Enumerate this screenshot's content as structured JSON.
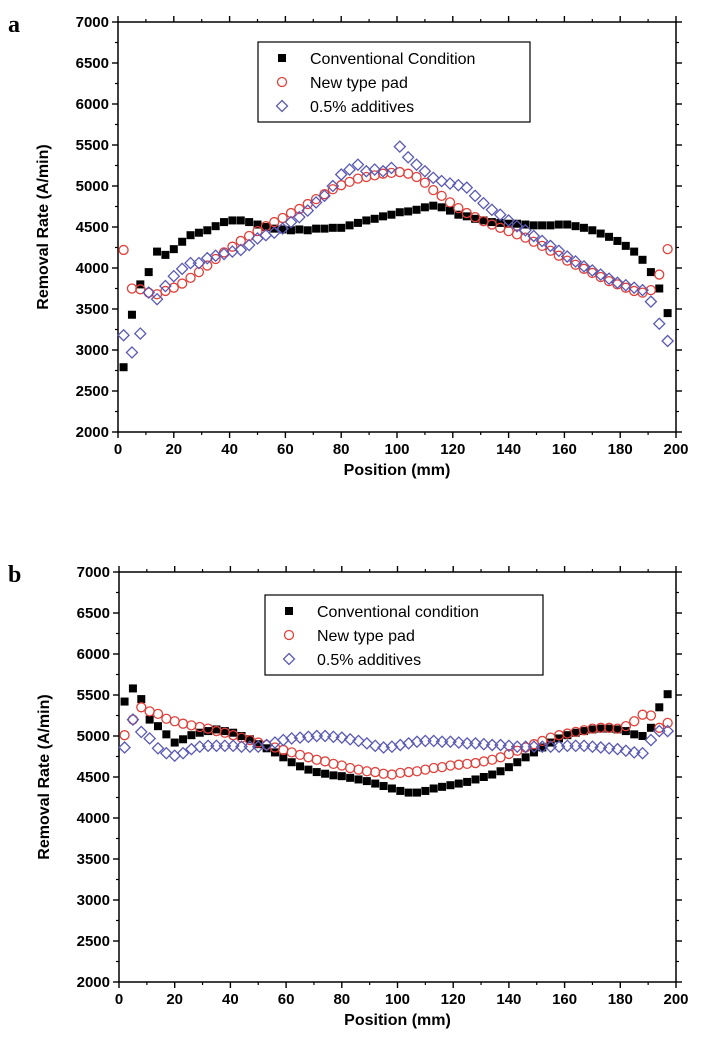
{
  "chart_data": [
    {
      "panel_label": "a",
      "type": "scatter",
      "xlabel": "Position (mm)",
      "ylabel": "Removal Rate (A/min)",
      "xlim": [
        0,
        200
      ],
      "ylim": [
        2000,
        7000
      ],
      "x_ticks": [
        0,
        20,
        40,
        60,
        80,
        100,
        120,
        140,
        160,
        180,
        200
      ],
      "y_ticks": [
        2000,
        2500,
        3000,
        3500,
        4000,
        4500,
        5000,
        5500,
        6000,
        6500,
        7000
      ],
      "grid": false,
      "legend_position": "top-center",
      "series": [
        {
          "name": "Conventional Condition",
          "marker": "filled-square",
          "color": "#000000",
          "x": [
            2,
            5,
            8,
            11,
            14,
            17,
            20,
            23,
            26,
            29,
            32,
            35,
            38,
            41,
            44,
            47,
            50,
            53,
            56,
            59,
            62,
            65,
            68,
            71,
            74,
            77,
            80,
            83,
            86,
            89,
            92,
            95,
            98,
            101,
            104,
            107,
            110,
            113,
            116,
            119,
            122,
            125,
            128,
            131,
            134,
            137,
            140,
            143,
            146,
            149,
            152,
            155,
            158,
            161,
            164,
            167,
            170,
            173,
            176,
            179,
            182,
            185,
            188,
            191,
            194,
            197
          ],
          "y": [
            2790,
            3430,
            3800,
            3950,
            4200,
            4160,
            4230,
            4320,
            4400,
            4430,
            4460,
            4510,
            4560,
            4580,
            4580,
            4560,
            4530,
            4500,
            4480,
            4470,
            4460,
            4470,
            4460,
            4480,
            4480,
            4490,
            4490,
            4520,
            4550,
            4580,
            4600,
            4630,
            4650,
            4680,
            4690,
            4710,
            4740,
            4760,
            4740,
            4700,
            4650,
            4630,
            4600,
            4580,
            4560,
            4550,
            4540,
            4540,
            4530,
            4520,
            4520,
            4520,
            4530,
            4530,
            4510,
            4490,
            4460,
            4420,
            4380,
            4330,
            4270,
            4200,
            4100,
            3950,
            3750,
            3450
          ]
        },
        {
          "name": "New type pad",
          "marker": "open-circle",
          "color": "#e0403a",
          "x": [
            2,
            5,
            8,
            11,
            14,
            17,
            20,
            23,
            26,
            29,
            32,
            35,
            38,
            41,
            44,
            47,
            50,
            53,
            56,
            59,
            62,
            65,
            68,
            71,
            74,
            77,
            80,
            83,
            86,
            89,
            92,
            95,
            98,
            101,
            104,
            107,
            110,
            113,
            116,
            119,
            122,
            125,
            128,
            131,
            134,
            137,
            140,
            143,
            146,
            149,
            152,
            155,
            158,
            161,
            164,
            167,
            170,
            173,
            176,
            179,
            182,
            185,
            188,
            191,
            194,
            197
          ],
          "y": [
            4220,
            3750,
            3740,
            3700,
            3680,
            3720,
            3760,
            3810,
            3880,
            3950,
            4030,
            4110,
            4190,
            4260,
            4330,
            4390,
            4450,
            4510,
            4560,
            4610,
            4670,
            4720,
            4780,
            4840,
            4900,
            4960,
            5010,
            5050,
            5090,
            5110,
            5130,
            5150,
            5160,
            5170,
            5150,
            5110,
            5040,
            4950,
            4880,
            4800,
            4730,
            4670,
            4620,
            4570,
            4530,
            4490,
            4450,
            4410,
            4370,
            4320,
            4270,
            4210,
            4150,
            4090,
            4040,
            3990,
            3940,
            3890,
            3840,
            3800,
            3760,
            3720,
            3700,
            3730,
            3920,
            4230
          ]
        },
        {
          "name": "0.5% additives",
          "marker": "open-diamond",
          "color": "#5a5ab4",
          "x": [
            2,
            5,
            8,
            11,
            14,
            17,
            20,
            23,
            26,
            29,
            32,
            35,
            38,
            41,
            44,
            47,
            50,
            53,
            56,
            59,
            62,
            65,
            68,
            71,
            74,
            77,
            80,
            83,
            86,
            89,
            92,
            95,
            98,
            101,
            104,
            107,
            110,
            113,
            116,
            119,
            122,
            125,
            128,
            131,
            134,
            137,
            140,
            143,
            146,
            149,
            152,
            155,
            158,
            161,
            164,
            167,
            170,
            173,
            176,
            179,
            182,
            185,
            188,
            191,
            194,
            197
          ],
          "y": [
            3180,
            2970,
            3200,
            3700,
            3620,
            3780,
            3900,
            3990,
            4060,
            4060,
            4120,
            4150,
            4170,
            4200,
            4220,
            4280,
            4360,
            4400,
            4430,
            4480,
            4560,
            4620,
            4700,
            4800,
            4880,
            5000,
            5140,
            5200,
            5260,
            5180,
            5200,
            5180,
            5220,
            5480,
            5350,
            5260,
            5180,
            5100,
            5060,
            5030,
            5010,
            4980,
            4880,
            4790,
            4710,
            4650,
            4580,
            4510,
            4460,
            4390,
            4330,
            4270,
            4210,
            4140,
            4080,
            4020,
            3970,
            3920,
            3870,
            3820,
            3790,
            3760,
            3730,
            3590,
            3320,
            3110
          ]
        }
      ]
    },
    {
      "panel_label": "b",
      "type": "scatter",
      "xlabel": "Position (mm)",
      "ylabel": "Removal Rate (A/min)",
      "xlim": [
        0,
        200
      ],
      "ylim": [
        2000,
        7000
      ],
      "x_ticks": [
        0,
        20,
        40,
        60,
        80,
        100,
        120,
        140,
        160,
        180,
        200
      ],
      "y_ticks": [
        2000,
        2500,
        3000,
        3500,
        4000,
        4500,
        5000,
        5500,
        6000,
        6500,
        7000
      ],
      "grid": false,
      "legend_position": "top-center",
      "series": [
        {
          "name": "Conventional condition",
          "marker": "filled-square",
          "color": "#000000",
          "x": [
            2,
            5,
            8,
            11,
            14,
            17,
            20,
            23,
            26,
            29,
            32,
            35,
            38,
            41,
            44,
            47,
            50,
            53,
            56,
            59,
            62,
            65,
            68,
            71,
            74,
            77,
            80,
            83,
            86,
            89,
            92,
            95,
            98,
            101,
            104,
            107,
            110,
            113,
            116,
            119,
            122,
            125,
            128,
            131,
            134,
            137,
            140,
            143,
            146,
            149,
            152,
            155,
            158,
            161,
            164,
            167,
            170,
            173,
            176,
            179,
            182,
            185,
            188,
            191,
            194,
            197
          ],
          "y": [
            5420,
            5580,
            5450,
            5200,
            5120,
            5020,
            4920,
            4960,
            5010,
            5040,
            5060,
            5080,
            5060,
            5040,
            5000,
            4960,
            4900,
            4850,
            4800,
            4740,
            4680,
            4630,
            4590,
            4560,
            4540,
            4520,
            4510,
            4490,
            4470,
            4450,
            4420,
            4390,
            4360,
            4330,
            4310,
            4310,
            4330,
            4360,
            4380,
            4400,
            4420,
            4440,
            4470,
            4500,
            4530,
            4570,
            4620,
            4680,
            4740,
            4800,
            4860,
            4920,
            4970,
            5010,
            5040,
            5060,
            5080,
            5090,
            5090,
            5080,
            5060,
            5020,
            5000,
            5100,
            5350,
            5510
          ]
        },
        {
          "name": "New type pad",
          "marker": "open-circle",
          "color": "#e0403a",
          "x": [
            2,
            5,
            8,
            11,
            14,
            17,
            20,
            23,
            26,
            29,
            32,
            35,
            38,
            41,
            44,
            47,
            50,
            53,
            56,
            59,
            62,
            65,
            68,
            71,
            74,
            77,
            80,
            83,
            86,
            89,
            92,
            95,
            98,
            101,
            104,
            107,
            110,
            113,
            116,
            119,
            122,
            125,
            128,
            131,
            134,
            137,
            140,
            143,
            146,
            149,
            152,
            155,
            158,
            161,
            164,
            167,
            170,
            173,
            176,
            179,
            182,
            185,
            188,
            191,
            194,
            197
          ],
          "y": [
            5010,
            5200,
            5350,
            5300,
            5270,
            5210,
            5180,
            5150,
            5130,
            5110,
            5090,
            5060,
            5040,
            5010,
            4980,
            4950,
            4920,
            4890,
            4860,
            4830,
            4800,
            4770,
            4740,
            4710,
            4690,
            4660,
            4640,
            4610,
            4590,
            4570,
            4560,
            4540,
            4530,
            4550,
            4560,
            4570,
            4590,
            4610,
            4620,
            4640,
            4650,
            4660,
            4670,
            4690,
            4710,
            4740,
            4780,
            4820,
            4860,
            4900,
            4940,
            4980,
            5010,
            5030,
            5050,
            5070,
            5090,
            5100,
            5100,
            5090,
            5120,
            5180,
            5260,
            5250,
            5100,
            5160
          ]
        },
        {
          "name": "0.5% additives",
          "marker": "open-diamond",
          "color": "#5a5ab4",
          "x": [
            2,
            5,
            8,
            11,
            14,
            17,
            20,
            23,
            26,
            29,
            32,
            35,
            38,
            41,
            44,
            47,
            50,
            53,
            56,
            59,
            62,
            65,
            68,
            71,
            74,
            77,
            80,
            83,
            86,
            89,
            92,
            95,
            98,
            101,
            104,
            107,
            110,
            113,
            116,
            119,
            122,
            125,
            128,
            131,
            134,
            137,
            140,
            143,
            146,
            149,
            152,
            155,
            158,
            161,
            164,
            167,
            170,
            173,
            176,
            179,
            182,
            185,
            188,
            191,
            194,
            197
          ],
          "y": [
            4860,
            5200,
            5050,
            4970,
            4850,
            4790,
            4760,
            4790,
            4840,
            4870,
            4880,
            4880,
            4880,
            4880,
            4870,
            4870,
            4870,
            4890,
            4920,
            4950,
            4970,
            4980,
            4990,
            5000,
            5000,
            4990,
            4980,
            4960,
            4940,
            4910,
            4880,
            4860,
            4870,
            4890,
            4910,
            4930,
            4940,
            4940,
            4930,
            4930,
            4920,
            4910,
            4910,
            4900,
            4890,
            4890,
            4880,
            4870,
            4870,
            4870,
            4870,
            4870,
            4870,
            4880,
            4880,
            4880,
            4870,
            4860,
            4850,
            4840,
            4820,
            4800,
            4790,
            4950,
            5060,
            5060
          ]
        }
      ]
    }
  ]
}
